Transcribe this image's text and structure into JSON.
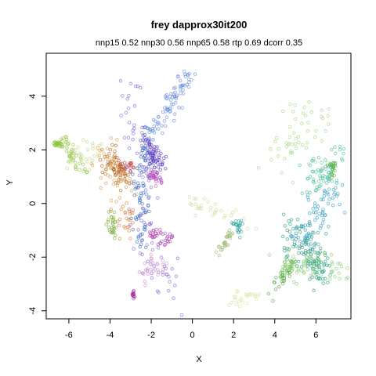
{
  "chart_data": {
    "type": "scatter",
    "title": "frey dapprox30it200",
    "subtitle": "nnp15 0.52 nnp30 0.56 nnp65 0.58 rtp 0.69 dcorr 0.35",
    "xlabel": "X",
    "ylabel": "Y",
    "xlim": [
      -7.1,
      7.7
    ],
    "ylim": [
      -4.3,
      5.6
    ],
    "xticks": [
      -6,
      -4,
      -2,
      0,
      2,
      4,
      6
    ],
    "yticks": [
      -4,
      -2,
      0,
      2,
      4
    ],
    "grid": false,
    "legend": "none",
    "clusters": [
      {
        "color": "#8cc63f",
        "n": 40,
        "segment": [
          [
            -6.5,
            2.6
          ],
          [
            -5.2,
            1.1
          ]
        ],
        "spread": 0.15
      },
      {
        "color": "#8cc63f",
        "n": 25,
        "segment": [
          [
            -6.7,
            2.3
          ],
          [
            -6.4,
            2.2
          ]
        ],
        "spread": 0.08
      },
      {
        "color": "#c6d98f",
        "n": 35,
        "segment": [
          [
            -6.2,
            2.0
          ],
          [
            -4.6,
            1.7
          ]
        ],
        "spread": 0.3
      },
      {
        "color": "#7cb342",
        "n": 30,
        "segment": [
          [
            -4.0,
            -0.3
          ],
          [
            -3.8,
            -1.2
          ]
        ],
        "spread": 0.12
      },
      {
        "color": "#b5651d",
        "n": 70,
        "segment": [
          [
            -4.1,
            1.7
          ],
          [
            -3.2,
            0.9
          ]
        ],
        "spread": 0.22
      },
      {
        "color": "#d8a050",
        "n": 40,
        "segment": [
          [
            -4.3,
            2.0
          ],
          [
            -3.4,
            0.5
          ]
        ],
        "spread": 0.35
      },
      {
        "color": "#c0392b",
        "n": 18,
        "segment": [
          [
            -3.4,
            1.5
          ],
          [
            -2.9,
            1.3
          ]
        ],
        "spread": 0.1
      },
      {
        "color": "#e08040",
        "n": 25,
        "segment": [
          [
            -3.6,
            0.0
          ],
          [
            -3.0,
            -0.9
          ]
        ],
        "spread": 0.25
      },
      {
        "color": "#3a6fc4",
        "n": 90,
        "segment": [
          [
            -2.2,
            2.8
          ],
          [
            -2.6,
            -1.5
          ]
        ],
        "spread": 0.22
      },
      {
        "color": "#6a8fe0",
        "n": 80,
        "segment": [
          [
            -1.9,
            2.6
          ],
          [
            -0.2,
            4.8
          ]
        ],
        "spread": 0.18
      },
      {
        "color": "#5b3fc4",
        "n": 70,
        "segment": [
          [
            -2.2,
            2.4
          ],
          [
            -1.7,
            1.3
          ]
        ],
        "spread": 0.2
      },
      {
        "color": "#8b6ad8",
        "n": 90,
        "segment": [
          [
            -3.3,
            4.4
          ],
          [
            -1.3,
            -3.5
          ]
        ],
        "spread": 0.45
      },
      {
        "color": "#b040b0",
        "n": 35,
        "segment": [
          [
            -2.1,
            -1.1
          ],
          [
            -1.1,
            -1.4
          ]
        ],
        "spread": 0.15
      },
      {
        "color": "#c050c0",
        "n": 30,
        "segment": [
          [
            -2.0,
            1.1
          ],
          [
            -1.7,
            0.9
          ]
        ],
        "spread": 0.12
      },
      {
        "color": "#a030a0",
        "n": 12,
        "segment": [
          [
            -2.9,
            -3.5
          ],
          [
            -2.8,
            -3.3
          ]
        ],
        "spread": 0.05
      },
      {
        "color": "#d090d0",
        "n": 25,
        "segment": [
          [
            -2.5,
            -2.6
          ],
          [
            -1.6,
            -2.2
          ]
        ],
        "spread": 0.25
      },
      {
        "color": "#9ab870",
        "n": 28,
        "segment": [
          [
            1.2,
            -1.9
          ],
          [
            1.9,
            -1.1
          ]
        ],
        "spread": 0.08
      },
      {
        "color": "#c8de9a",
        "n": 30,
        "segment": [
          [
            -0.2,
            0.1
          ],
          [
            3.2,
            -0.9
          ]
        ],
        "spread": 0.18
      },
      {
        "color": "#3aa8a0",
        "n": 25,
        "segment": [
          [
            2.1,
            -0.7
          ],
          [
            2.3,
            -1.0
          ]
        ],
        "spread": 0.12
      },
      {
        "color": "#d4e6a0",
        "n": 25,
        "segment": [
          [
            1.8,
            -3.7
          ],
          [
            3.3,
            -3.4
          ]
        ],
        "spread": 0.18
      },
      {
        "color": "#5aa845",
        "n": 40,
        "segment": [
          [
            4.0,
            -3.2
          ],
          [
            4.9,
            -2.1
          ]
        ],
        "spread": 0.12
      },
      {
        "color": "#2f9e86",
        "n": 130,
        "segment": [
          [
            4.8,
            -1.0
          ],
          [
            6.3,
            -2.5
          ]
        ],
        "spread": 0.35
      },
      {
        "color": "#3aa0c8",
        "n": 70,
        "segment": [
          [
            5.3,
            -1.4
          ],
          [
            6.9,
            0.5
          ]
        ],
        "spread": 0.35
      },
      {
        "color": "#4fc0a0",
        "n": 70,
        "segment": [
          [
            5.8,
            0.5
          ],
          [
            7.1,
            1.8
          ]
        ],
        "spread": 0.35
      },
      {
        "color": "#58b040",
        "n": 20,
        "segment": [
          [
            6.8,
            1.5
          ],
          [
            6.8,
            1.0
          ]
        ],
        "spread": 0.08
      },
      {
        "color": "#a8d880",
        "n": 55,
        "segment": [
          [
            4.0,
            1.8
          ],
          [
            6.0,
            3.0
          ]
        ],
        "spread": 0.55
      },
      {
        "color": "#8ad070",
        "n": 70,
        "segment": [
          [
            4.5,
            -2.4
          ],
          [
            7.2,
            -2.4
          ]
        ],
        "spread": 0.3
      }
    ]
  }
}
